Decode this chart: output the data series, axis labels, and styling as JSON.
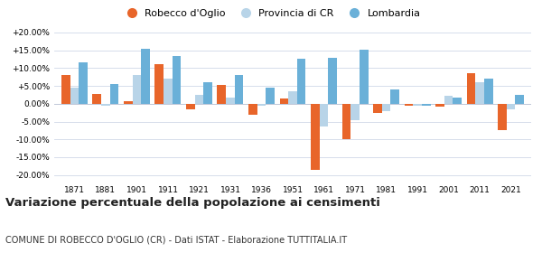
{
  "years": [
    1871,
    1881,
    1901,
    1911,
    1921,
    1931,
    1936,
    1951,
    1961,
    1971,
    1981,
    1991,
    2001,
    2011,
    2021
  ],
  "robecco": [
    8.0,
    2.8,
    0.8,
    11.0,
    -1.5,
    5.2,
    -3.0,
    1.5,
    -18.5,
    -10.0,
    -2.5,
    -0.5,
    -0.8,
    8.5,
    -7.5
  ],
  "provincia": [
    4.5,
    -0.5,
    8.0,
    7.0,
    2.5,
    1.8,
    -0.5,
    3.5,
    -6.5,
    -4.5,
    -2.0,
    -0.5,
    2.2,
    6.0,
    -1.5
  ],
  "lombardia": [
    11.5,
    5.5,
    15.5,
    13.5,
    6.0,
    8.0,
    4.5,
    12.5,
    12.8,
    15.2,
    4.0,
    -0.5,
    1.8,
    7.0,
    2.5
  ],
  "color_robecco": "#e8652a",
  "color_provincia": "#b8d4e8",
  "color_lombardia": "#6ab0d8",
  "title": "Variazione percentuale della popolazione ai censimenti",
  "subtitle": "COMUNE DI ROBECCO D'OGLIO (CR) - Dati ISTAT - Elaborazione TUTTITALIA.IT",
  "legend_labels": [
    "Robecco d'Oglio",
    "Provincia di CR",
    "Lombardia"
  ],
  "ylim": [
    -22,
    22
  ],
  "yticks": [
    -20,
    -15,
    -10,
    -5,
    0,
    5,
    10,
    15,
    20
  ],
  "background_color": "#ffffff",
  "grid_color": "#d0d8e8",
  "title_fontsize": 9.5,
  "subtitle_fontsize": 7.0,
  "bar_width": 0.28
}
